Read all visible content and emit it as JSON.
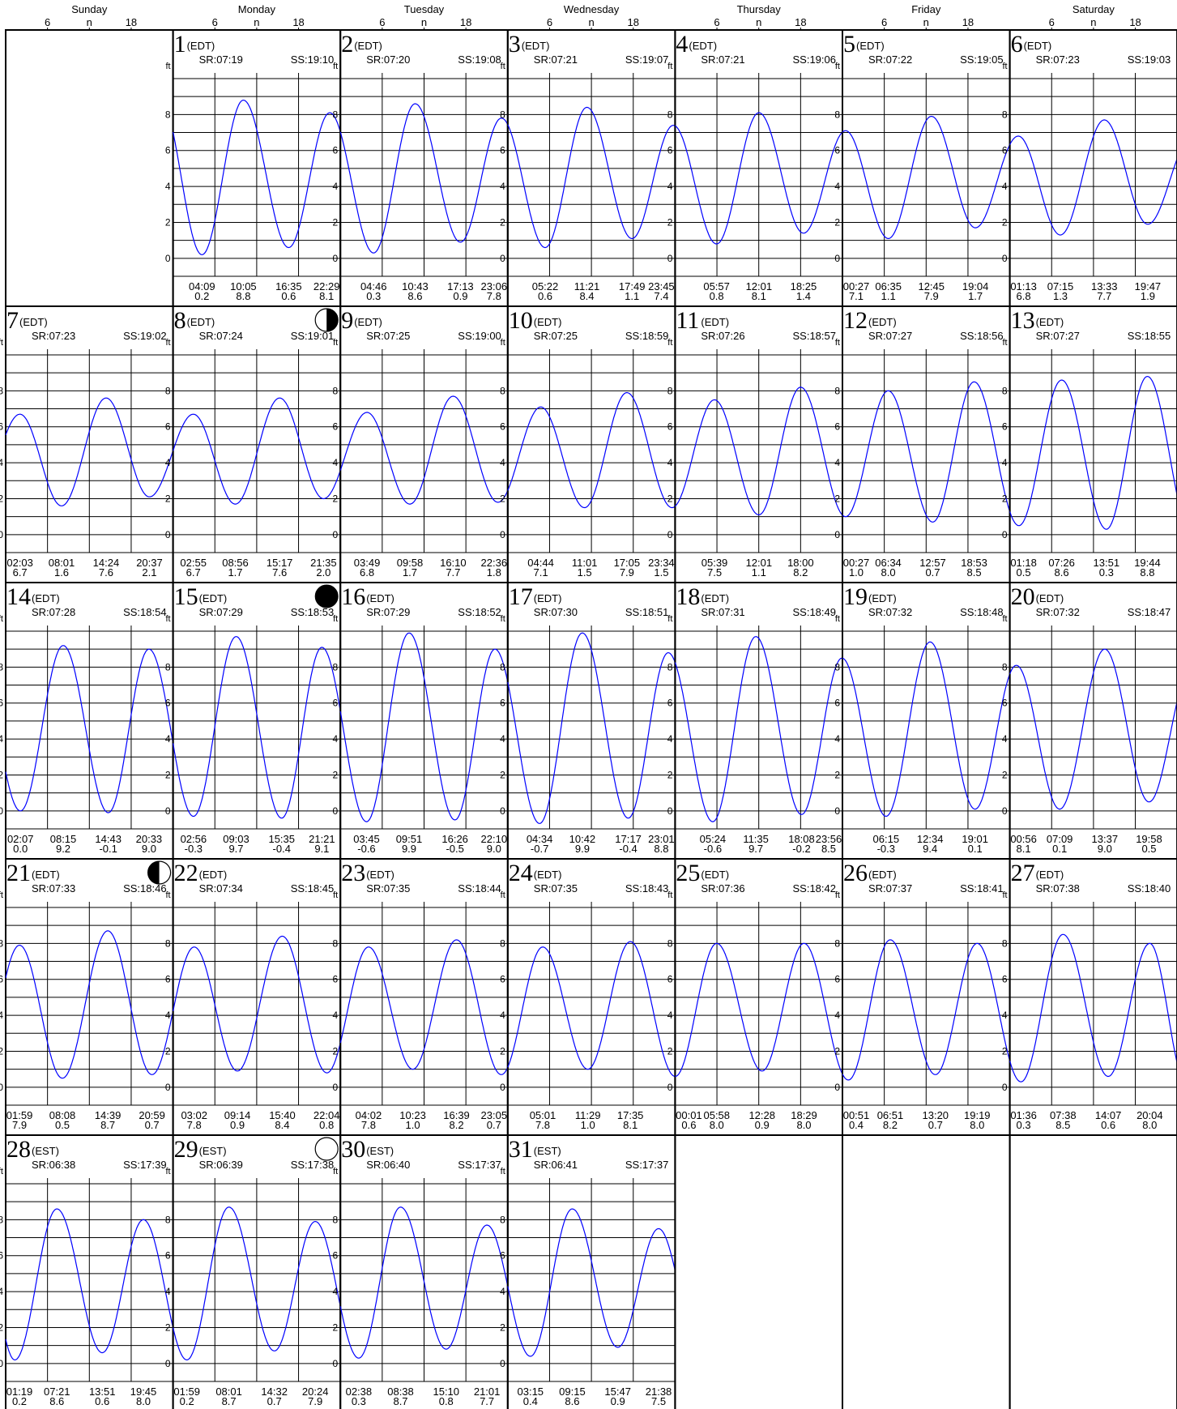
{
  "header": {
    "days": [
      "Sunday",
      "Monday",
      "Tuesday",
      "Wednesday",
      "Thursday",
      "Friday",
      "Saturday"
    ],
    "ticks": [
      "6",
      "n",
      "18"
    ]
  },
  "units": {
    "left_axis": "ft",
    "axis_ticks": [
      "0",
      "2",
      "4",
      "6",
      "8"
    ]
  },
  "colors": {
    "curve": "#0000ff",
    "grid": "#000000",
    "background": "#ffffff"
  },
  "chart_data": {
    "type": "line",
    "ylim": [
      -1,
      10
    ],
    "y_ticks": [
      0,
      2,
      4,
      6,
      8
    ],
    "first_weekday": 1,
    "days": [
      {
        "day": "1",
        "zone": "(EDT)",
        "sr": "SR:07:19",
        "ss": "SS:19:10",
        "moon": "",
        "events": [
          {
            "t": "04:09",
            "h": "0.2"
          },
          {
            "t": "10:05",
            "h": "8.8"
          },
          {
            "t": "16:35",
            "h": "0.6"
          },
          {
            "t": "22:29",
            "h": "8.1"
          }
        ]
      },
      {
        "day": "2",
        "zone": "(EDT)",
        "sr": "SR:07:20",
        "ss": "SS:19:08",
        "moon": "",
        "events": [
          {
            "t": "04:46",
            "h": "0.3"
          },
          {
            "t": "10:43",
            "h": "8.6"
          },
          {
            "t": "17:13",
            "h": "0.9"
          },
          {
            "t": "23:06",
            "h": "7.8"
          }
        ]
      },
      {
        "day": "3",
        "zone": "(EDT)",
        "sr": "SR:07:21",
        "ss": "SS:19:07",
        "moon": "",
        "events": [
          {
            "t": "05:22",
            "h": "0.6"
          },
          {
            "t": "11:21",
            "h": "8.4"
          },
          {
            "t": "17:49",
            "h": "1.1"
          },
          {
            "t": "23:45",
            "h": "7.4"
          }
        ]
      },
      {
        "day": "4",
        "zone": "(EDT)",
        "sr": "SR:07:21",
        "ss": "SS:19:06",
        "moon": "",
        "events": [
          {
            "t": "05:57",
            "h": "0.8"
          },
          {
            "t": "12:01",
            "h": "8.1"
          },
          {
            "t": "18:25",
            "h": "1.4"
          }
        ]
      },
      {
        "day": "5",
        "zone": "(EDT)",
        "sr": "SR:07:22",
        "ss": "SS:19:05",
        "moon": "",
        "events": [
          {
            "t": "00:27",
            "h": "7.1"
          },
          {
            "t": "06:35",
            "h": "1.1"
          },
          {
            "t": "12:45",
            "h": "7.9"
          },
          {
            "t": "19:04",
            "h": "1.7"
          }
        ]
      },
      {
        "day": "6",
        "zone": "(EDT)",
        "sr": "SR:07:23",
        "ss": "SS:19:03",
        "moon": "",
        "events": [
          {
            "t": "01:13",
            "h": "6.8"
          },
          {
            "t": "07:15",
            "h": "1.3"
          },
          {
            "t": "13:33",
            "h": "7.7"
          },
          {
            "t": "19:47",
            "h": "1.9"
          }
        ]
      },
      {
        "day": "7",
        "zone": "(EDT)",
        "sr": "SR:07:23",
        "ss": "SS:19:02",
        "moon": "",
        "events": [
          {
            "t": "02:03",
            "h": "6.7"
          },
          {
            "t": "08:01",
            "h": "1.6"
          },
          {
            "t": "14:24",
            "h": "7.6"
          },
          {
            "t": "20:37",
            "h": "2.1"
          }
        ]
      },
      {
        "day": "8",
        "zone": "(EDT)",
        "sr": "SR:07:24",
        "ss": "SS:19:01",
        "moon": "first",
        "events": [
          {
            "t": "02:55",
            "h": "6.7"
          },
          {
            "t": "08:56",
            "h": "1.7"
          },
          {
            "t": "15:17",
            "h": "7.6"
          },
          {
            "t": "21:35",
            "h": "2.0"
          }
        ]
      },
      {
        "day": "9",
        "zone": "(EDT)",
        "sr": "SR:07:25",
        "ss": "SS:19:00",
        "moon": "",
        "events": [
          {
            "t": "03:49",
            "h": "6.8"
          },
          {
            "t": "09:58",
            "h": "1.7"
          },
          {
            "t": "16:10",
            "h": "7.7"
          },
          {
            "t": "22:36",
            "h": "1.8"
          }
        ]
      },
      {
        "day": "10",
        "zone": "(EDT)",
        "sr": "SR:07:25",
        "ss": "SS:18:59",
        "moon": "",
        "events": [
          {
            "t": "04:44",
            "h": "7.1"
          },
          {
            "t": "11:01",
            "h": "1.5"
          },
          {
            "t": "17:05",
            "h": "7.9"
          },
          {
            "t": "23:34",
            "h": "1.5"
          }
        ]
      },
      {
        "day": "11",
        "zone": "(EDT)",
        "sr": "SR:07:26",
        "ss": "SS:18:57",
        "moon": "",
        "events": [
          {
            "t": "05:39",
            "h": "7.5"
          },
          {
            "t": "12:01",
            "h": "1.1"
          },
          {
            "t": "18:00",
            "h": "8.2"
          }
        ]
      },
      {
        "day": "12",
        "zone": "(EDT)",
        "sr": "SR:07:27",
        "ss": "SS:18:56",
        "moon": "",
        "events": [
          {
            "t": "00:27",
            "h": "1.0"
          },
          {
            "t": "06:34",
            "h": "8.0"
          },
          {
            "t": "12:57",
            "h": "0.7"
          },
          {
            "t": "18:53",
            "h": "8.5"
          }
        ]
      },
      {
        "day": "13",
        "zone": "(EDT)",
        "sr": "SR:07:27",
        "ss": "SS:18:55",
        "moon": "",
        "events": [
          {
            "t": "01:18",
            "h": "0.5"
          },
          {
            "t": "07:26",
            "h": "8.6"
          },
          {
            "t": "13:51",
            "h": "0.3"
          },
          {
            "t": "19:44",
            "h": "8.8"
          }
        ]
      },
      {
        "day": "14",
        "zone": "(EDT)",
        "sr": "SR:07:28",
        "ss": "SS:18:54",
        "moon": "",
        "events": [
          {
            "t": "02:07",
            "h": "0.0"
          },
          {
            "t": "08:15",
            "h": "9.2"
          },
          {
            "t": "14:43",
            "h": "-0.1"
          },
          {
            "t": "20:33",
            "h": "9.0"
          }
        ]
      },
      {
        "day": "15",
        "zone": "(EDT)",
        "sr": "SR:07:29",
        "ss": "SS:18:53",
        "moon": "new",
        "events": [
          {
            "t": "02:56",
            "h": "-0.3"
          },
          {
            "t": "09:03",
            "h": "9.7"
          },
          {
            "t": "15:35",
            "h": "-0.4"
          },
          {
            "t": "21:21",
            "h": "9.1"
          }
        ]
      },
      {
        "day": "16",
        "zone": "(EDT)",
        "sr": "SR:07:29",
        "ss": "SS:18:52",
        "moon": "",
        "events": [
          {
            "t": "03:45",
            "h": "-0.6"
          },
          {
            "t": "09:51",
            "h": "9.9"
          },
          {
            "t": "16:26",
            "h": "-0.5"
          },
          {
            "t": "22:10",
            "h": "9.0"
          }
        ]
      },
      {
        "day": "17",
        "zone": "(EDT)",
        "sr": "SR:07:30",
        "ss": "SS:18:51",
        "moon": "",
        "events": [
          {
            "t": "04:34",
            "h": "-0.7"
          },
          {
            "t": "10:42",
            "h": "9.9"
          },
          {
            "t": "17:17",
            "h": "-0.4"
          },
          {
            "t": "23:01",
            "h": "8.8"
          }
        ]
      },
      {
        "day": "18",
        "zone": "(EDT)",
        "sr": "SR:07:31",
        "ss": "SS:18:49",
        "moon": "",
        "events": [
          {
            "t": "05:24",
            "h": "-0.6"
          },
          {
            "t": "11:35",
            "h": "9.7"
          },
          {
            "t": "18:08",
            "h": "-0.2"
          },
          {
            "t": "23:56",
            "h": "8.5"
          }
        ]
      },
      {
        "day": "19",
        "zone": "(EDT)",
        "sr": "SR:07:32",
        "ss": "SS:18:48",
        "moon": "",
        "events": [
          {
            "t": "06:15",
            "h": "-0.3"
          },
          {
            "t": "12:34",
            "h": "9.4"
          },
          {
            "t": "19:01",
            "h": "0.1"
          }
        ]
      },
      {
        "day": "20",
        "zone": "(EDT)",
        "sr": "SR:07:32",
        "ss": "SS:18:47",
        "moon": "",
        "events": [
          {
            "t": "00:56",
            "h": "8.1"
          },
          {
            "t": "07:09",
            "h": "0.1"
          },
          {
            "t": "13:37",
            "h": "9.0"
          },
          {
            "t": "19:58",
            "h": "0.5"
          }
        ]
      },
      {
        "day": "21",
        "zone": "(EDT)",
        "sr": "SR:07:33",
        "ss": "SS:18:46",
        "moon": "last",
        "events": [
          {
            "t": "01:59",
            "h": "7.9"
          },
          {
            "t": "08:08",
            "h": "0.5"
          },
          {
            "t": "14:39",
            "h": "8.7"
          },
          {
            "t": "20:59",
            "h": "0.7"
          }
        ]
      },
      {
        "day": "22",
        "zone": "(EDT)",
        "sr": "SR:07:34",
        "ss": "SS:18:45",
        "moon": "",
        "events": [
          {
            "t": "03:02",
            "h": "7.8"
          },
          {
            "t": "09:14",
            "h": "0.9"
          },
          {
            "t": "15:40",
            "h": "8.4"
          },
          {
            "t": "22:04",
            "h": "0.8"
          }
        ]
      },
      {
        "day": "23",
        "zone": "(EDT)",
        "sr": "SR:07:35",
        "ss": "SS:18:44",
        "moon": "",
        "events": [
          {
            "t": "04:02",
            "h": "7.8"
          },
          {
            "t": "10:23",
            "h": "1.0"
          },
          {
            "t": "16:39",
            "h": "8.2"
          },
          {
            "t": "23:05",
            "h": "0.7"
          }
        ]
      },
      {
        "day": "24",
        "zone": "(EDT)",
        "sr": "SR:07:35",
        "ss": "SS:18:43",
        "moon": "",
        "events": [
          {
            "t": "05:01",
            "h": "7.8"
          },
          {
            "t": "11:29",
            "h": "1.0"
          },
          {
            "t": "17:35",
            "h": "8.1"
          }
        ]
      },
      {
        "day": "25",
        "zone": "(EDT)",
        "sr": "SR:07:36",
        "ss": "SS:18:42",
        "moon": "",
        "events": [
          {
            "t": "00:01",
            "h": "0.6"
          },
          {
            "t": "05:58",
            "h": "8.0"
          },
          {
            "t": "12:28",
            "h": "0.9"
          },
          {
            "t": "18:29",
            "h": "8.0"
          }
        ]
      },
      {
        "day": "26",
        "zone": "(EDT)",
        "sr": "SR:07:37",
        "ss": "SS:18:41",
        "moon": "",
        "events": [
          {
            "t": "00:51",
            "h": "0.4"
          },
          {
            "t": "06:51",
            "h": "8.2"
          },
          {
            "t": "13:20",
            "h": "0.7"
          },
          {
            "t": "19:19",
            "h": "8.0"
          }
        ]
      },
      {
        "day": "27",
        "zone": "(EDT)",
        "sr": "SR:07:38",
        "ss": "SS:18:40",
        "moon": "",
        "events": [
          {
            "t": "01:36",
            "h": "0.3"
          },
          {
            "t": "07:38",
            "h": "8.5"
          },
          {
            "t": "14:07",
            "h": "0.6"
          },
          {
            "t": "20:04",
            "h": "8.0"
          }
        ]
      },
      {
        "day": "28",
        "zone": "(EST)",
        "sr": "SR:06:38",
        "ss": "SS:17:39",
        "moon": "",
        "events": [
          {
            "t": "01:19",
            "h": "0.2"
          },
          {
            "t": "07:21",
            "h": "8.6"
          },
          {
            "t": "13:51",
            "h": "0.6"
          },
          {
            "t": "19:45",
            "h": "8.0"
          }
        ]
      },
      {
        "day": "29",
        "zone": "(EST)",
        "sr": "SR:06:39",
        "ss": "SS:17:38",
        "moon": "full",
        "events": [
          {
            "t": "01:59",
            "h": "0.2"
          },
          {
            "t": "08:01",
            "h": "8.7"
          },
          {
            "t": "14:32",
            "h": "0.7"
          },
          {
            "t": "20:24",
            "h": "7.9"
          }
        ]
      },
      {
        "day": "30",
        "zone": "(EST)",
        "sr": "SR:06:40",
        "ss": "SS:17:37",
        "moon": "",
        "events": [
          {
            "t": "02:38",
            "h": "0.3"
          },
          {
            "t": "08:38",
            "h": "8.7"
          },
          {
            "t": "15:10",
            "h": "0.8"
          },
          {
            "t": "21:01",
            "h": "7.7"
          }
        ]
      },
      {
        "day": "31",
        "zone": "(EST)",
        "sr": "SR:06:41",
        "ss": "SS:17:37",
        "moon": "",
        "events": [
          {
            "t": "03:15",
            "h": "0.4"
          },
          {
            "t": "09:15",
            "h": "8.6"
          },
          {
            "t": "15:47",
            "h": "0.9"
          },
          {
            "t": "21:38",
            "h": "7.5"
          }
        ]
      }
    ]
  }
}
